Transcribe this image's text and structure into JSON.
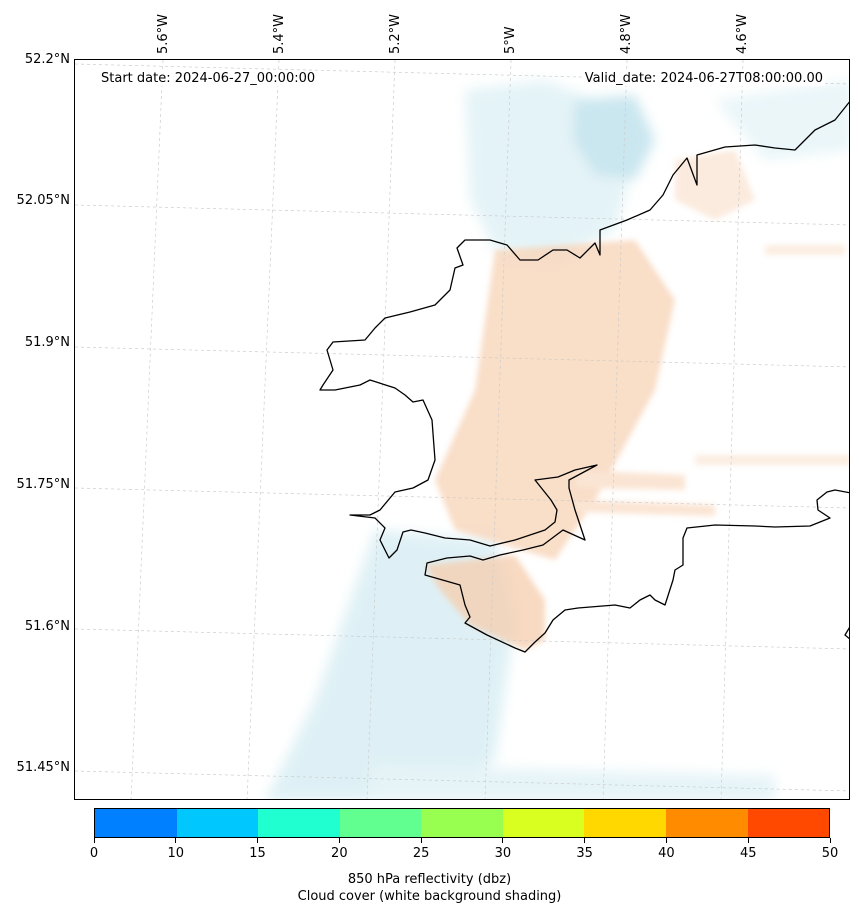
{
  "map": {
    "start_date": "Start date: 2024-06-27_00:00:00",
    "valid_date": "Valid_date: 2024-06-27T08:00:00.00",
    "lat_labels": [
      "52.2°N",
      "52.05°N",
      "51.9°N",
      "51.75°N",
      "51.6°N",
      "51.45°N"
    ],
    "lon_labels": [
      "5.6°W",
      "5.4°W",
      "5.2°W",
      "5°W",
      "4.8°W",
      "4.6°W"
    ],
    "coastline_color": "#000000",
    "gridline_color": "#cccccc",
    "cloud_color": "#b9dfe9",
    "reflectivity_color": "#f7d3b6"
  },
  "colorbar": {
    "ticks": [
      "0",
      "10",
      "15",
      "20",
      "25",
      "30",
      "35",
      "40",
      "45",
      "50"
    ],
    "colors": [
      "#0080ff",
      "#00c8ff",
      "#20ffd0",
      "#60ff90",
      "#98ff50",
      "#d8ff20",
      "#ffd800",
      "#ff8c00",
      "#ff4800"
    ],
    "label": "850 hPa reflectivity (dbz)",
    "sublabel": "Cloud cover (white background shading)"
  }
}
